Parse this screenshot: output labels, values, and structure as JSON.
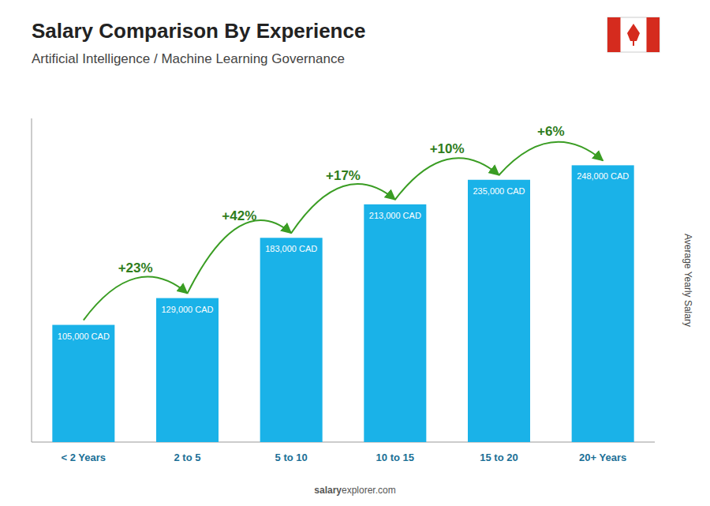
{
  "chart_data": {
    "type": "bar",
    "title": "Salary Comparison By Experience",
    "subtitle": "Artificial Intelligence / Machine Learning Governance",
    "ylabel": "Average Yearly Salary",
    "categories": [
      "< 2 Years",
      "2 to 5",
      "5 to 10",
      "10 to 15",
      "15 to 20",
      "20+ Years"
    ],
    "values": [
      105000,
      129000,
      183000,
      213000,
      235000,
      248000
    ],
    "value_labels": [
      "105,000 CAD",
      "129,000 CAD",
      "183,000 CAD",
      "213,000 CAD",
      "235,000 CAD",
      "248,000 CAD"
    ],
    "data_labels": true,
    "annotations": [
      "+23%",
      "+42%",
      "+17%",
      "+10%",
      "+6%"
    ],
    "watermark": [
      "salary",
      "explorer.com"
    ],
    "color": "#1AB2E8",
    "ylim": [
      0,
      290000
    ],
    "grid": false,
    "tick_labels": "x"
  }
}
